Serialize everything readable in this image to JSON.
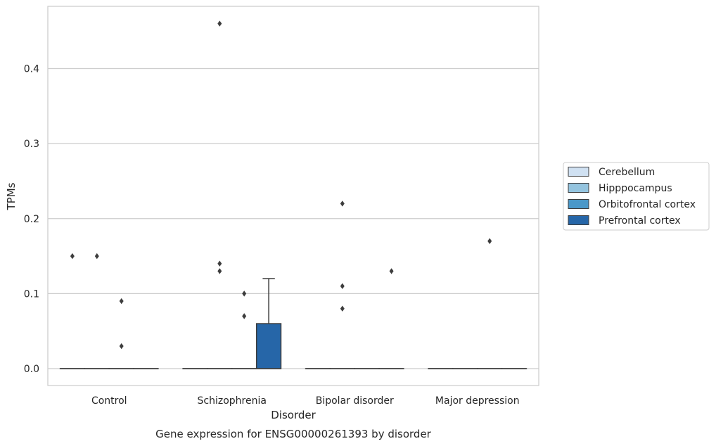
{
  "chart_data": {
    "type": "box",
    "title": "",
    "caption": "Gene expression for ENSG00000261393 by disorder",
    "xlabel": "Disorder",
    "ylabel": "TPMs",
    "ylim": [
      -0.0225,
      0.483
    ],
    "yticks": [
      "0.0",
      "0.1",
      "0.2",
      "0.3",
      "0.4"
    ],
    "categories": [
      "Control",
      "Schizophrenia",
      "Bipolar disorder",
      "Major depression"
    ],
    "grid": "horizontal",
    "legend_position": "right",
    "series": [
      {
        "name": "Cerebellum",
        "color": "#d0e1f2",
        "boxes": [
          {
            "q1": 0,
            "median": 0,
            "q3": 0,
            "whisker_low": 0,
            "whisker_high": 0,
            "outliers": [
              0.15
            ]
          },
          {
            "q1": 0,
            "median": 0,
            "q3": 0,
            "whisker_low": 0,
            "whisker_high": 0,
            "outliers": []
          },
          {
            "q1": 0,
            "median": 0,
            "q3": 0,
            "whisker_low": 0,
            "whisker_high": 0,
            "outliers": []
          },
          {
            "q1": 0,
            "median": 0,
            "q3": 0,
            "whisker_low": 0,
            "whisker_high": 0,
            "outliers": []
          }
        ]
      },
      {
        "name": "Hipppocampus",
        "color": "#94c4df",
        "boxes": [
          {
            "q1": 0,
            "median": 0,
            "q3": 0,
            "whisker_low": 0,
            "whisker_high": 0,
            "outliers": [
              0.15
            ]
          },
          {
            "q1": 0,
            "median": 0,
            "q3": 0,
            "whisker_low": 0,
            "whisker_high": 0,
            "outliers": [
              0.46,
              0.14,
              0.13
            ]
          },
          {
            "q1": 0,
            "median": 0,
            "q3": 0,
            "whisker_low": 0,
            "whisker_high": 0,
            "outliers": [
              0.22,
              0.11,
              0.08
            ]
          },
          {
            "q1": 0,
            "median": 0,
            "q3": 0,
            "whisker_low": 0,
            "whisker_high": 0,
            "outliers": []
          }
        ]
      },
      {
        "name": "Orbitofrontal cortex",
        "color": "#4a98c9",
        "boxes": [
          {
            "q1": 0,
            "median": 0,
            "q3": 0,
            "whisker_low": 0,
            "whisker_high": 0,
            "outliers": [
              0.09,
              0.03
            ]
          },
          {
            "q1": 0,
            "median": 0,
            "q3": 0,
            "whisker_low": 0,
            "whisker_high": 0,
            "outliers": [
              0.1,
              0.07
            ]
          },
          {
            "q1": 0,
            "median": 0,
            "q3": 0,
            "whisker_low": 0,
            "whisker_high": 0,
            "outliers": []
          },
          {
            "q1": 0,
            "median": 0,
            "q3": 0,
            "whisker_low": 0,
            "whisker_high": 0,
            "outliers": [
              0.17
            ]
          }
        ]
      },
      {
        "name": "Prefrontal cortex",
        "color": "#2666a8",
        "boxes": [
          {
            "q1": 0,
            "median": 0,
            "q3": 0,
            "whisker_low": 0,
            "whisker_high": 0,
            "outliers": []
          },
          {
            "q1": 0,
            "median": 0,
            "q3": 0.06,
            "whisker_low": 0,
            "whisker_high": 0.12,
            "outliers": []
          },
          {
            "q1": 0,
            "median": 0,
            "q3": 0,
            "whisker_low": 0,
            "whisker_high": 0,
            "outliers": [
              0.13
            ]
          },
          {
            "q1": 0,
            "median": 0,
            "q3": 0,
            "whisker_low": 0,
            "whisker_high": 0,
            "outliers": []
          }
        ]
      }
    ]
  }
}
